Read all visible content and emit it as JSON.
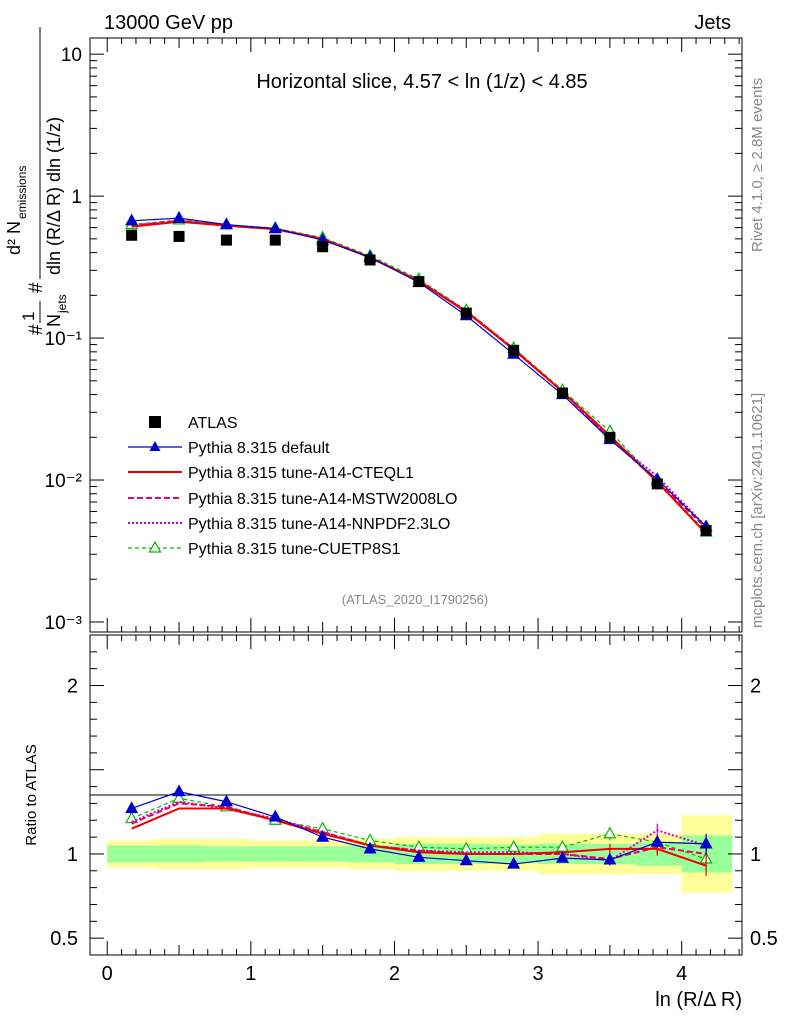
{
  "header": {
    "left": "13000 GeV pp",
    "right": "Jets"
  },
  "side_texts": {
    "rivet": "Rivet 4.1.0, ≥ 2.8M events",
    "mcplots": "mcplots.cern.ch [arXiv:2401.10621]"
  },
  "chart_data": {
    "type": "line",
    "title": "Horizontal slice, 4.57 < ln (1/z) < 4.85",
    "analysis_id": "(ATLAS_2020_I1790256)",
    "xlabel": "ln (R/Δ R)",
    "ylabel_main": "1/N_jets d²N_emissions / dln(R/ΔR) dln(1/z)",
    "ylabel_ratio": "Ratio to ATLAS",
    "xlim": [
      -0.12,
      4.42
    ],
    "ylim_main": [
      0.00085,
      13
    ],
    "ylim_ratio": [
      0.4,
      2.3
    ],
    "x_ticks": [
      "0",
      "1",
      "2",
      "3",
      "4"
    ],
    "y_ticks_main": [
      "10",
      "1",
      "10⁻¹",
      "10⁻²",
      "10⁻³"
    ],
    "y_ticks_ratio": [
      "2",
      "1",
      "0.5"
    ],
    "x": [
      0.17,
      0.5,
      0.83,
      1.17,
      1.5,
      1.83,
      2.17,
      2.5,
      2.83,
      3.17,
      3.5,
      3.83,
      4.17
    ],
    "x_edges": [
      0,
      0.33,
      0.67,
      1.0,
      1.33,
      1.67,
      2.0,
      2.33,
      2.67,
      3.0,
      3.33,
      3.67,
      4.0,
      4.35
    ],
    "atlas": {
      "name": "ATLAS",
      "values": [
        0.53,
        0.52,
        0.49,
        0.49,
        0.44,
        0.355,
        0.25,
        0.15,
        0.082,
        0.041,
        0.02,
        0.0094,
        0.0044
      ],
      "err_inner": [
        0.05,
        0.05,
        0.045,
        0.045,
        0.045,
        0.05,
        0.06,
        0.06,
        0.055,
        0.06,
        0.06,
        0.07,
        0.11
      ],
      "err_outer": [
        0.08,
        0.09,
        0.09,
        0.08,
        0.08,
        0.09,
        0.1,
        0.1,
        0.1,
        0.12,
        0.12,
        0.12,
        0.23
      ]
    },
    "series": [
      {
        "name": "Pythia 8.315 default",
        "color": "#0000cc",
        "dash": "",
        "marker": "triangle-filled",
        "values": [
          0.67,
          0.7,
          0.63,
          0.59,
          0.49,
          0.37,
          0.247,
          0.144,
          0.077,
          0.04,
          0.0193,
          0.0101,
          0.0047
        ],
        "ratio": [
          1.27,
          1.37,
          1.31,
          1.22,
          1.1,
          1.03,
          0.98,
          0.96,
          0.94,
          0.975,
          0.965,
          1.07,
          1.06
        ],
        "ratio_err": [
          0,
          0,
          0,
          0,
          0,
          0,
          0,
          0,
          0,
          0,
          0.03,
          0.03,
          0.06
        ]
      },
      {
        "name": "Pythia 8.315 tune-A14-CTEQL1",
        "color": "#ee0000",
        "dash": "",
        "marker": "none",
        "values": [
          0.61,
          0.66,
          0.62,
          0.585,
          0.5,
          0.37,
          0.252,
          0.153,
          0.083,
          0.042,
          0.0205,
          0.0097,
          0.0042
        ],
        "ratio": [
          1.15,
          1.27,
          1.27,
          1.2,
          1.12,
          1.05,
          1.01,
          1.0,
          1.0,
          1.01,
          1.03,
          1.03,
          0.93
        ],
        "ratio_err": [
          0,
          0,
          0,
          0,
          0,
          0,
          0,
          0,
          0,
          0,
          0.03,
          0.04,
          0.06
        ]
      },
      {
        "name": "Pythia 8.315 tune-A14-MSTW2008LO",
        "color": "#ee0066",
        "dash": "6,3",
        "marker": "none",
        "values": [
          0.62,
          0.67,
          0.62,
          0.585,
          0.5,
          0.37,
          0.253,
          0.154,
          0.084,
          0.042,
          0.0198,
          0.0098,
          0.0046
        ],
        "ratio": [
          1.18,
          1.3,
          1.28,
          1.2,
          1.13,
          1.05,
          1.02,
          1.0,
          1.0,
          1.0,
          0.97,
          1.04,
          1.0
        ],
        "ratio_err": [
          0,
          0,
          0,
          0,
          0,
          0,
          0,
          0,
          0,
          0,
          0.03,
          0.04,
          0.06
        ]
      },
      {
        "name": "Pythia 8.315 tune-A14-NNPDF2.3LO",
        "color": "#cc00cc",
        "dash": "2,2",
        "marker": "none",
        "values": [
          0.62,
          0.67,
          0.62,
          0.59,
          0.5,
          0.37,
          0.254,
          0.155,
          0.084,
          0.042,
          0.0196,
          0.0106,
          0.0047
        ],
        "ratio": [
          1.19,
          1.31,
          1.27,
          1.21,
          1.13,
          1.05,
          1.02,
          1.01,
          1.01,
          1.0,
          0.96,
          1.14,
          1.05
        ],
        "ratio_err": [
          0,
          0,
          0,
          0,
          0,
          0,
          0,
          0,
          0,
          0,
          0.03,
          0.04,
          0.06
        ]
      },
      {
        "name": "Pythia 8.315 tune-CUETP8S1",
        "color": "#00bb00",
        "dash": "4,3",
        "marker": "triangle-open",
        "values": [
          0.63,
          0.68,
          0.63,
          0.595,
          0.51,
          0.38,
          0.26,
          0.157,
          0.085,
          0.043,
          0.022,
          0.0098,
          0.0043
        ],
        "ratio": [
          1.21,
          1.33,
          1.28,
          1.2,
          1.15,
          1.08,
          1.04,
          1.03,
          1.04,
          1.04,
          1.12,
          1.07,
          0.97
        ],
        "ratio_err": [
          0,
          0,
          0,
          0,
          0,
          0,
          0,
          0,
          0,
          0,
          0.04,
          0.04,
          0.06
        ]
      }
    ]
  }
}
